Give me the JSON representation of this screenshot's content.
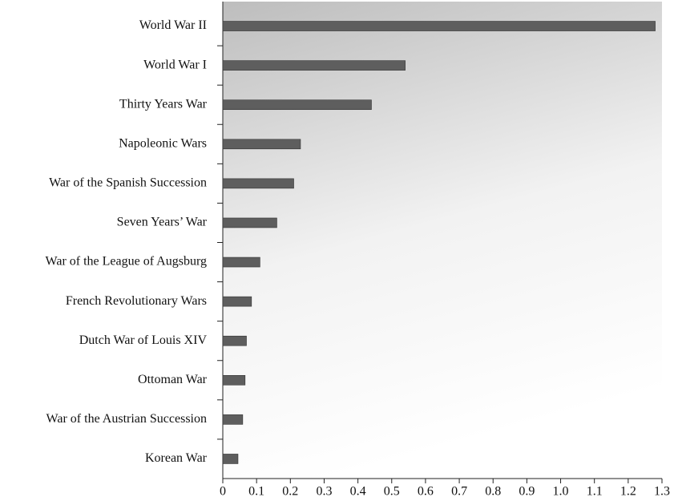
{
  "chart_data": {
    "type": "bar",
    "orientation": "horizontal",
    "categories": [
      "World War II",
      "World War I",
      "Thirty Years War",
      "Napoleonic Wars",
      "War of the Spanish Succession",
      "Seven Years’ War",
      "War of the League of Augsburg",
      "French Revolutionary Wars",
      "Dutch War of Louis XIV",
      "Ottoman War",
      "War of the Austrian Succession",
      "Korean War"
    ],
    "values": [
      1.28,
      0.54,
      0.44,
      0.23,
      0.21,
      0.16,
      0.11,
      0.085,
      0.07,
      0.066,
      0.059,
      0.045
    ],
    "color": "#5e5e5e",
    "xlim": [
      0,
      1.3
    ],
    "xticks": [
      0,
      0.1,
      0.2,
      0.3,
      0.4,
      0.5,
      0.6,
      0.7,
      0.8,
      0.9,
      {
        "value": 1,
        "label": "1.0"
      },
      1.1,
      1.2,
      1.3
    ],
    "grid": false
  }
}
